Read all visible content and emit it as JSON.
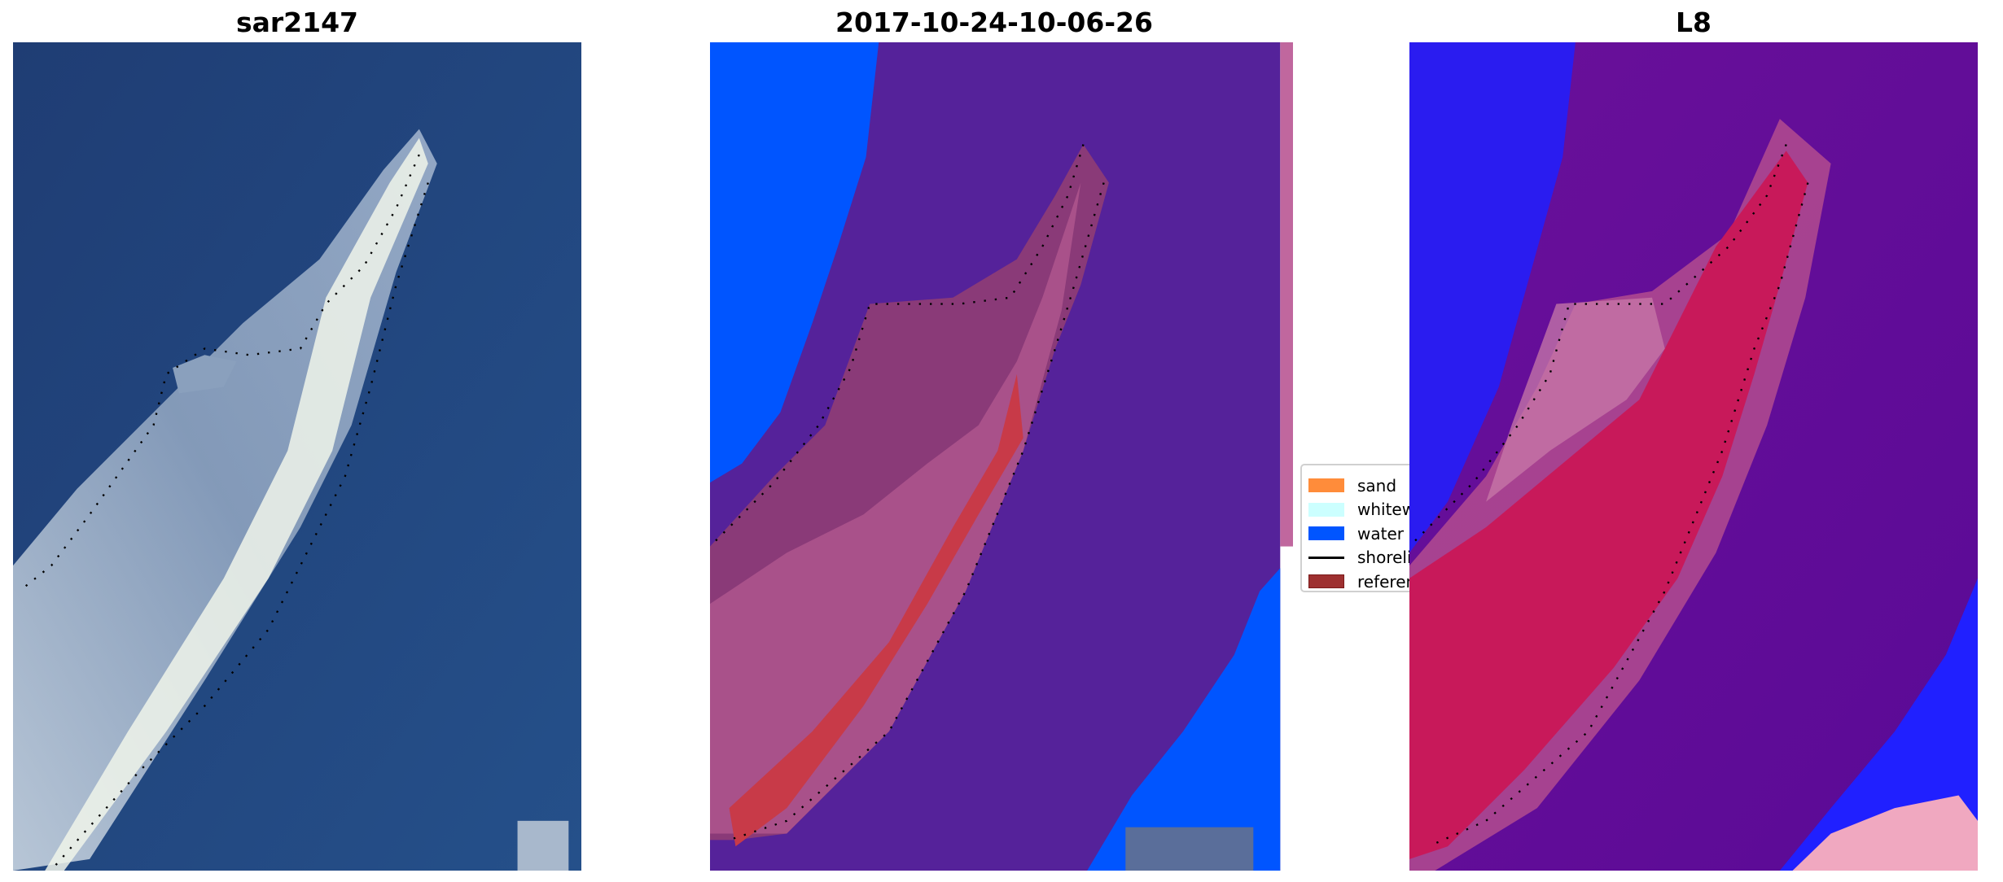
{
  "panels": [
    {
      "title": "sar2147"
    },
    {
      "title": "2017-10-24-10-06-26"
    },
    {
      "title": "L8"
    }
  ],
  "legend": {
    "placement": "center, between second and third panel",
    "items": [
      {
        "label": "sand",
        "color": "#ff8c3a",
        "kind": "patch"
      },
      {
        "label": "whitewater",
        "color": "#ccffff",
        "kind": "patch"
      },
      {
        "label": "water",
        "color": "#0055ff",
        "kind": "patch"
      },
      {
        "label": "shoreline",
        "color": "#000000",
        "kind": "line"
      },
      {
        "label": "reference",
        "color": "#9e3030",
        "kind": "patch"
      }
    ]
  },
  "chart_data": {
    "type": "image",
    "panels": [
      "sar2147",
      "2017-10-24-10-06-26",
      "L8"
    ],
    "axes": "off",
    "colors": {
      "sar_water": "#22417a",
      "classified_background": "#55229a",
      "classified_water": "#0055ff",
      "l8_background": "#6a1090",
      "l8_water": "#2020ff",
      "l8_land": "#c8195a"
    }
  }
}
